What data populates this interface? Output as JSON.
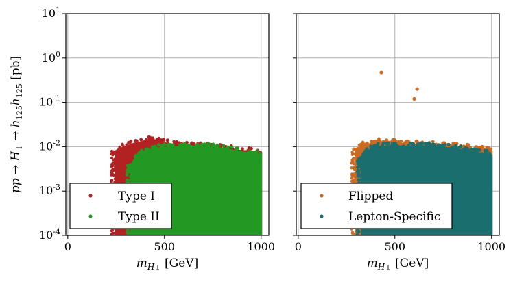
{
  "chart_data": [
    {
      "type": "scatter",
      "panel": "left",
      "xlabel": "m_{H↓} [GeV]",
      "ylabel": "pp → H↓ → h125 h125 [pb]",
      "x_unit": "GeV",
      "y_scale": "log",
      "xlim": [
        -10,
        1040
      ],
      "ylim": [
        0.0001,
        10
      ],
      "xticks": [
        0,
        500,
        1000
      ],
      "yticks": [
        0.0001,
        0.001,
        0.01,
        0.1,
        1,
        10
      ],
      "grid": true,
      "legend_position": "lower-left",
      "series": [
        {
          "name": "Type I",
          "color": "#b22222",
          "region": {
            "x_range": [
              250,
              1000
            ],
            "envelope": [
              [
                250,
                0.008
              ],
              [
                300,
                0.01
              ],
              [
                350,
                0.012
              ],
              [
                400,
                0.013
              ],
              [
                430,
                0.015
              ],
              [
                470,
                0.013
              ],
              [
                500,
                0.012
              ],
              [
                550,
                0.011
              ],
              [
                600,
                0.0105
              ],
              [
                700,
                0.01
              ],
              [
                800,
                0.009
              ],
              [
                900,
                0.008
              ],
              [
                1000,
                0.0075
              ]
            ],
            "floor": 0.0001
          }
        },
        {
          "name": "Type II",
          "color": "#229922",
          "region": {
            "x_range": [
              330,
              1000
            ],
            "envelope": [
              [
                330,
                0.004
              ],
              [
                360,
                0.006
              ],
              [
                400,
                0.008
              ],
              [
                450,
                0.009
              ],
              [
                500,
                0.0095
              ],
              [
                550,
                0.0098
              ],
              [
                600,
                0.01
              ],
              [
                700,
                0.01
              ],
              [
                800,
                0.009
              ],
              [
                900,
                0.0075
              ],
              [
                1000,
                0.0065
              ]
            ],
            "floor": 0.0001
          }
        }
      ]
    },
    {
      "type": "scatter",
      "panel": "right",
      "xlabel": "m_{H↓} [GeV]",
      "x_unit": "GeV",
      "y_scale": "log",
      "xlim": [
        -10,
        1040
      ],
      "ylim": [
        0.0001,
        10
      ],
      "xticks": [
        0,
        500,
        1000
      ],
      "yticks": [
        0.0001,
        0.001,
        0.01,
        0.1,
        1,
        10
      ],
      "grid": true,
      "legend_position": "lower-left",
      "series": [
        {
          "name": "Flipped",
          "color": "#cc6a22",
          "region": {
            "x_range": [
              250,
              1000
            ],
            "envelope": [
              [
                300,
                0.009
              ],
              [
                350,
                0.011
              ],
              [
                400,
                0.012
              ],
              [
                450,
                0.013
              ],
              [
                500,
                0.012
              ],
              [
                600,
                0.011
              ],
              [
                700,
                0.011
              ],
              [
                800,
                0.01
              ],
              [
                900,
                0.009
              ],
              [
                1000,
                0.008
              ]
            ],
            "floor": 0.0001
          },
          "outliers": [
            [
              430,
              0.47
            ],
            [
              615,
              0.2
            ],
            [
              600,
              0.12
            ]
          ]
        },
        {
          "name": "Lepton-Specific",
          "color": "#1a6e6e",
          "region": {
            "x_range": [
              330,
              1000
            ],
            "envelope": [
              [
                330,
                0.006
              ],
              [
                360,
                0.008
              ],
              [
                400,
                0.0095
              ],
              [
                450,
                0.01
              ],
              [
                500,
                0.01
              ],
              [
                600,
                0.01
              ],
              [
                700,
                0.0098
              ],
              [
                800,
                0.009
              ],
              [
                900,
                0.0075
              ],
              [
                1000,
                0.0065
              ]
            ],
            "floor": 0.0001
          }
        }
      ]
    }
  ]
}
